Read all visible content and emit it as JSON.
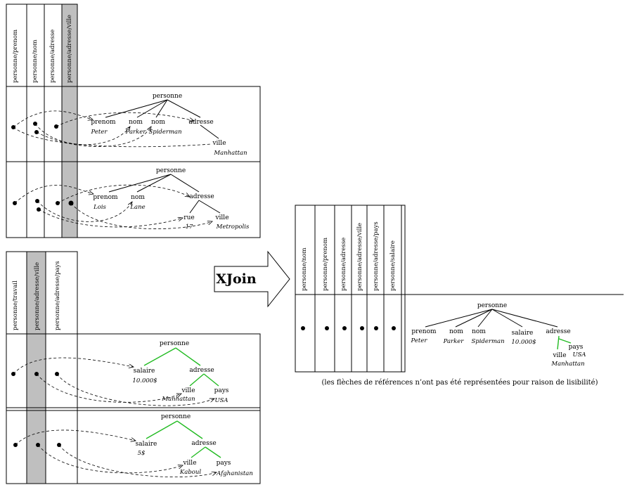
{
  "panel_a": {
    "columns": [
      "personne/prenom",
      "personne/nom",
      "personne/adresse",
      "personne/adresse/ville"
    ],
    "tree1": {
      "root": "personne",
      "prenom_tag": "prenom",
      "prenom_val": "Peter",
      "nom1_tag": "nom",
      "nom1_val": "Parker",
      "nom2_tag": "nom",
      "nom2_val": "Spiderman",
      "adresse_tag": "adresse",
      "ville_tag": "ville",
      "ville_val": "Manhattan"
    },
    "tree2": {
      "root": "personne",
      "prenom_tag": "prenom",
      "prenom_val": "Lois",
      "nom_tag": "nom",
      "nom_val": "Lane",
      "adresse_tag": "adresse",
      "rue_tag": "rue",
      "rue_val": "17",
      "ville_tag": "ville",
      "ville_val": "Metropolis"
    }
  },
  "panel_b": {
    "columns": [
      "personne/travail",
      "personne/adresse/ville",
      "personne/adresse/pays"
    ],
    "tree1": {
      "root": "personne",
      "salaire_tag": "salaire",
      "salaire_val": "10.000$",
      "adresse_tag": "adresse",
      "ville_tag": "ville",
      "ville_val": "Manhattan",
      "pays_tag": "pays",
      "pays_val": "USA"
    },
    "tree2": {
      "root": "personne",
      "salaire_tag": "salaire",
      "salaire_val": "5$",
      "adresse_tag": "adresse",
      "ville_tag": "ville",
      "ville_val": "Kaboul",
      "pays_tag": "pays",
      "pays_val": "Afghanistan"
    }
  },
  "xjoin": {
    "label": "XJoin"
  },
  "result": {
    "columns": [
      "personne/nom",
      "personne/prenom",
      "personne/adresse",
      "personne/adresse/ville",
      "personne/adresse/pays",
      "personne/salaire"
    ],
    "tree": {
      "root": "personne",
      "prenom_tag": "prenom",
      "prenom_val": "Peter",
      "nom1_tag": "nom",
      "nom1_val": "Parker",
      "nom2_tag": "nom",
      "nom2_val": "Spiderman",
      "salaire_tag": "salaire",
      "salaire_val": "10.000$",
      "adresse_tag": "adresse",
      "ville_tag": "ville",
      "ville_val": "Manhattan",
      "pays_tag": "pays",
      "pays_val": "USA"
    },
    "caption": "(les flèches de références n’ont pas été représentées pour raison de lisibilité)"
  },
  "colors": {
    "highlight_column": "#bfbfbf",
    "tree_edge_green": "#22bb22"
  }
}
